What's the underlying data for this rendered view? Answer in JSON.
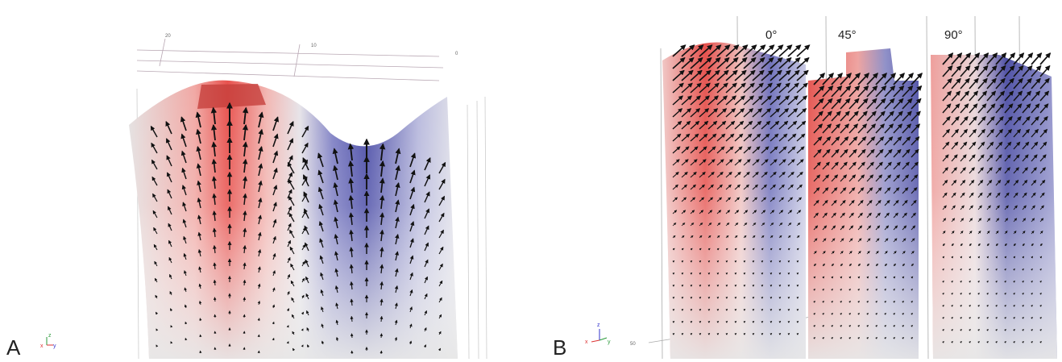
{
  "panels": [
    {
      "label": "A",
      "axis_ticks": [
        "20",
        "10",
        "0"
      ],
      "axis_letters": [
        "z",
        "x",
        "y"
      ]
    },
    {
      "label": "B",
      "angles": [
        "0°",
        "45°",
        "90°"
      ],
      "axis_tick": "50",
      "axis_letters": [
        "z",
        "x",
        "y"
      ]
    }
  ]
}
